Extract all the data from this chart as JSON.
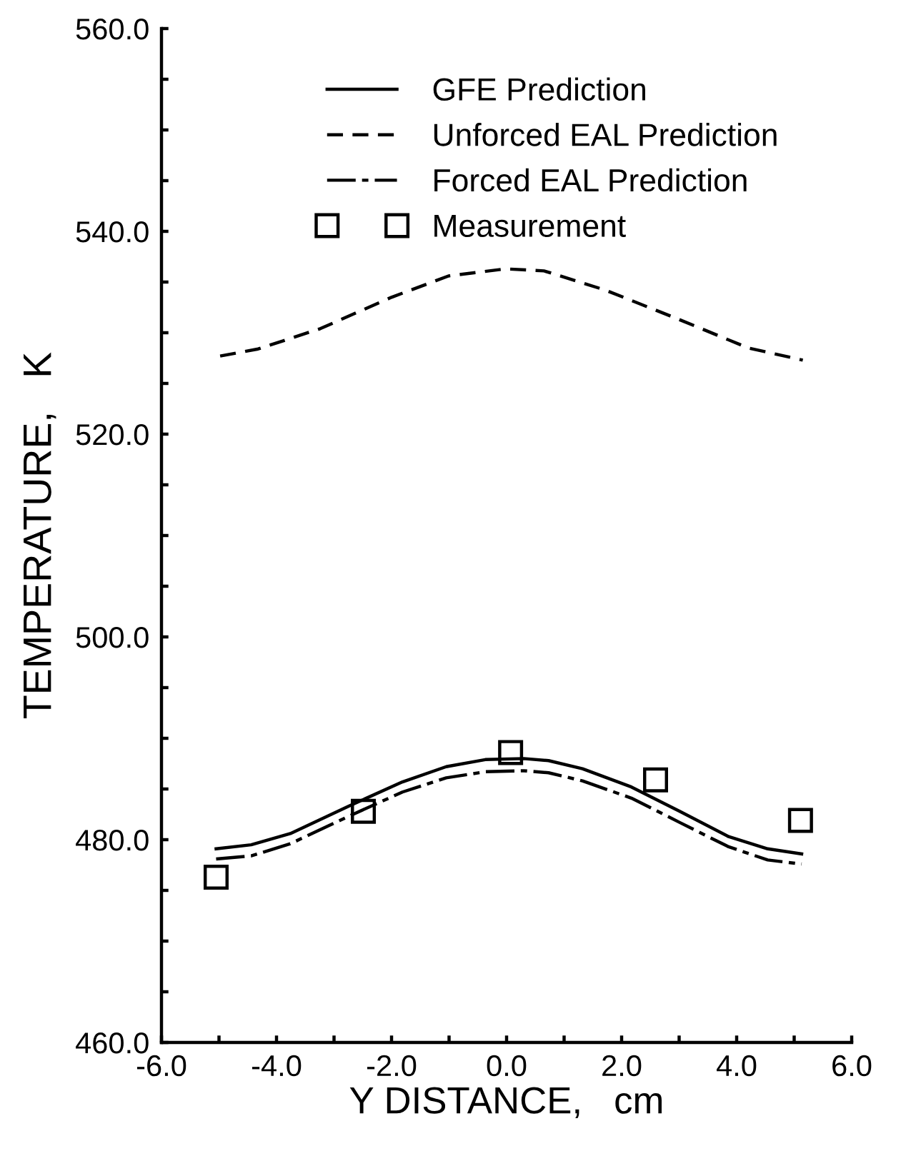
{
  "chart_data": {
    "type": "line",
    "xlabel": "Y DISTANCE,   cm",
    "ylabel": "TEMPERATURE,   K",
    "xlim": [
      -6,
      6
    ],
    "ylim": [
      460,
      560
    ],
    "xticks": [
      {
        "value": -6,
        "label": "-6.0"
      },
      {
        "value": -5,
        "label": null
      },
      {
        "value": -4,
        "label": "-4.0"
      },
      {
        "value": -3,
        "label": null
      },
      {
        "value": -2,
        "label": "-2.0"
      },
      {
        "value": -1,
        "label": null
      },
      {
        "value": 0,
        "label": "0.0"
      },
      {
        "value": 1,
        "label": null
      },
      {
        "value": 2,
        "label": "2.0"
      },
      {
        "value": 3,
        "label": null
      },
      {
        "value": 4,
        "label": "4.0"
      },
      {
        "value": 5,
        "label": null
      },
      {
        "value": 6,
        "label": "6.0"
      }
    ],
    "yticks": [
      {
        "value": 460,
        "label": "460.0"
      },
      {
        "value": 465,
        "label": null
      },
      {
        "value": 470,
        "label": null
      },
      {
        "value": 475,
        "label": null
      },
      {
        "value": 480,
        "label": "480.0"
      },
      {
        "value": 485,
        "label": null
      },
      {
        "value": 490,
        "label": null
      },
      {
        "value": 495,
        "label": null
      },
      {
        "value": 500,
        "label": "500.0"
      },
      {
        "value": 505,
        "label": null
      },
      {
        "value": 510,
        "label": null
      },
      {
        "value": 515,
        "label": null
      },
      {
        "value": 520,
        "label": "520.0"
      },
      {
        "value": 525,
        "label": null
      },
      {
        "value": 530,
        "label": null
      },
      {
        "value": 535,
        "label": null
      },
      {
        "value": 540,
        "label": "540.0"
      },
      {
        "value": 545,
        "label": null
      },
      {
        "value": 550,
        "label": null
      },
      {
        "value": 555,
        "label": null
      },
      {
        "value": 560,
        "label": "560.0"
      }
    ],
    "grid": false,
    "legend": "top",
    "series": [
      {
        "name": "GFE Prediction",
        "color": "#000000",
        "line_style": "solid",
        "marker": "none",
        "x": [
          -5.05,
          -4.44,
          -3.76,
          -2.75,
          -1.81,
          -1.05,
          -0.37,
          0.3,
          0.73,
          1.32,
          2.17,
          3.01,
          3.86,
          4.54,
          5.13
        ],
        "values": [
          479.1,
          479.5,
          480.6,
          483.3,
          485.7,
          487.2,
          487.9,
          488.0,
          487.8,
          487.0,
          485.2,
          482.8,
          480.3,
          479.1,
          478.6
        ]
      },
      {
        "name": "Unforced EAL Prediction",
        "color": "#000000",
        "line_style": "dashed",
        "marker": "none",
        "x": [
          -4.98,
          -4.32,
          -3.24,
          -2.0,
          -1.01,
          -0.02,
          0.65,
          1.72,
          2.96,
          4.2,
          5.15
        ],
        "values": [
          527.7,
          528.4,
          530.4,
          533.5,
          535.6,
          536.3,
          536.1,
          534.2,
          531.4,
          528.5,
          527.3
        ]
      },
      {
        "name": "Forced EAL Prediction",
        "color": "#000000",
        "line_style": "dashed",
        "marker": "none",
        "x": [
          -5.05,
          -4.44,
          -3.76,
          -2.75,
          -1.81,
          -1.05,
          -0.37,
          0.3,
          0.73,
          1.32,
          2.17,
          3.01,
          3.86,
          4.54,
          5.13
        ],
        "values": [
          478.1,
          478.4,
          479.6,
          482.3,
          484.7,
          486.1,
          486.7,
          486.8,
          486.6,
          485.8,
          484.1,
          481.7,
          479.3,
          478.0,
          477.6
        ]
      },
      {
        "name": "Measurement",
        "type": "scatter",
        "color": "#000000",
        "marker": "square",
        "x": [
          -5.05,
          -2.49,
          0.07,
          2.59,
          5.11
        ],
        "values": [
          476.3,
          482.8,
          488.6,
          485.9,
          481.9
        ]
      }
    ]
  }
}
